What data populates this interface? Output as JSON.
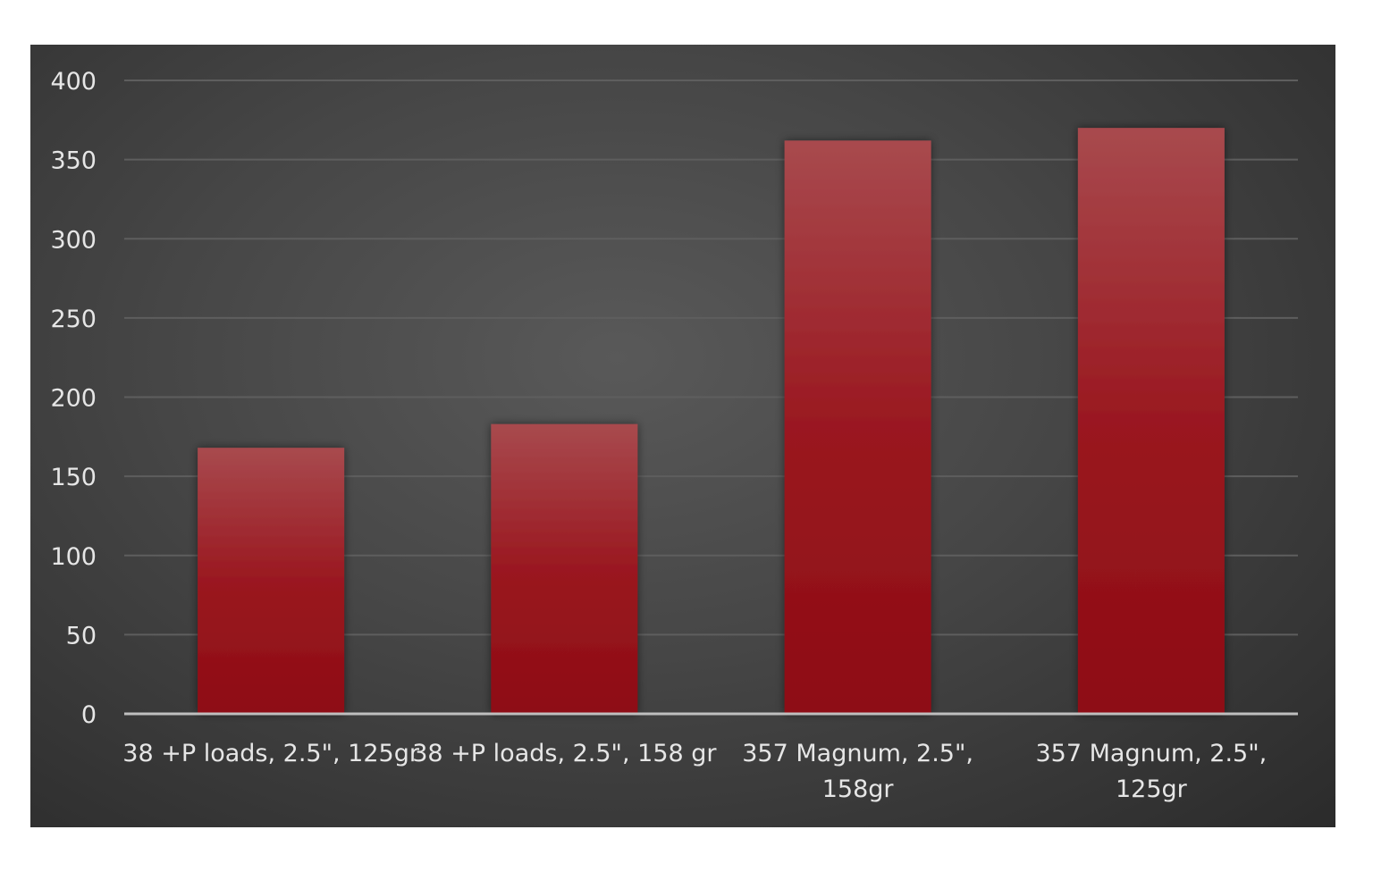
{
  "chart_data": {
    "type": "bar",
    "title": "",
    "xlabel": "",
    "ylabel": "",
    "categories": [
      [
        "38 +P loads, 2.5\", 125gr"
      ],
      [
        "38 +P loads, 2.5\", 158 gr"
      ],
      [
        "357 Magnum, 2.5\",",
        "158gr"
      ],
      [
        "357 Magnum, 2.5\",",
        "125gr"
      ]
    ],
    "values": [
      168,
      183,
      362,
      370
    ],
    "ylim": [
      0,
      400
    ],
    "yticks": [
      0,
      50,
      100,
      150,
      200,
      250,
      300,
      350,
      400
    ],
    "grid": true,
    "legend": "none",
    "colors": {
      "bar_top": "#a84a4e",
      "bar_bottom": "#8e0c14",
      "background": "#454545",
      "grid": "#5e5e5e",
      "axis": "#bfbfbf",
      "text": "#e6e6e6"
    }
  }
}
